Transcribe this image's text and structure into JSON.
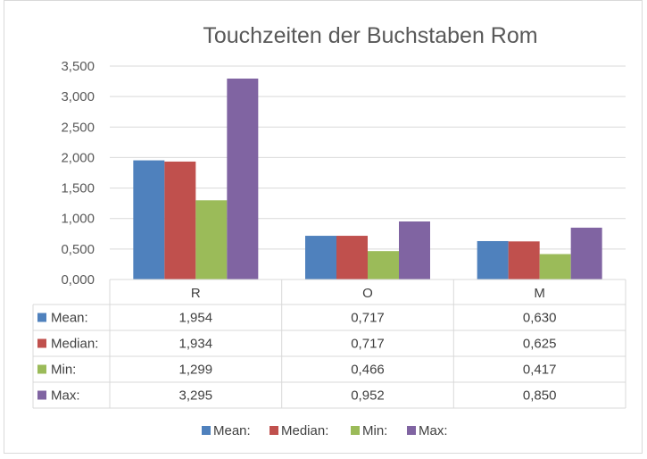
{
  "chart_data": {
    "type": "bar",
    "title": "Touchzeiten der Buchstaben Rom",
    "categories": [
      "R",
      "O",
      "M"
    ],
    "series": [
      {
        "name": "Mean:",
        "color": "#4f81bd",
        "values": [
          1.954,
          0.717,
          0.63
        ],
        "labels": [
          "1,954",
          "0,717",
          "0,630"
        ]
      },
      {
        "name": "Median:",
        "color": "#c0504d",
        "values": [
          1.934,
          0.717,
          0.625
        ],
        "labels": [
          "1,934",
          "0,717",
          "0,625"
        ]
      },
      {
        "name": "Min:",
        "color": "#9bbb59",
        "values": [
          1.299,
          0.466,
          0.417
        ],
        "labels": [
          "1,299",
          "0,466",
          "0,417"
        ]
      },
      {
        "name": "Max:",
        "color": "#8064a2",
        "values": [
          3.295,
          0.952,
          0.85
        ],
        "labels": [
          "3,295",
          "0,952",
          "0,850"
        ]
      }
    ],
    "ylim": [
      0,
      3.5
    ],
    "yticks": [
      0,
      0.5,
      1,
      1.5,
      2,
      2.5,
      3,
      3.5
    ],
    "ytick_labels": [
      "0,000",
      "0,500",
      "1,000",
      "1,500",
      "2,000",
      "2,500",
      "3,000",
      "3,500"
    ],
    "grid": true,
    "legend": "bottom",
    "data_table": true
  }
}
